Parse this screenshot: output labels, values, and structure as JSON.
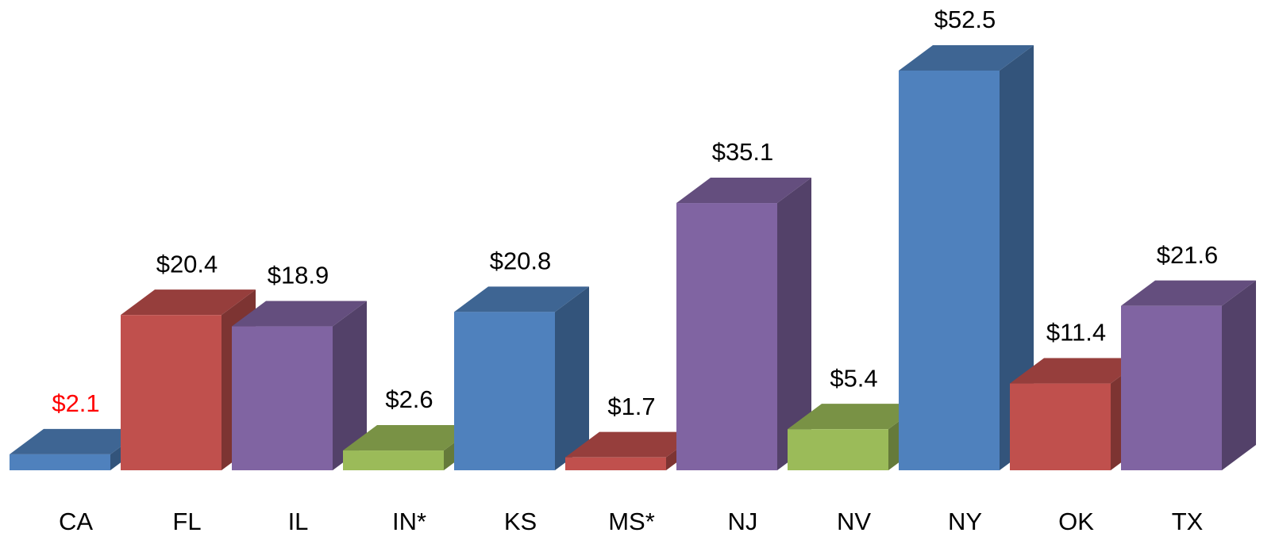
{
  "chart_data": {
    "type": "bar3d",
    "categories": [
      "CA",
      "FL",
      "IL",
      "IN*",
      "KS",
      "MS*",
      "NJ",
      "NV",
      "NY",
      "OK",
      "TX"
    ],
    "values": [
      2.1,
      20.4,
      18.9,
      2.6,
      20.8,
      1.7,
      35.1,
      5.4,
      52.5,
      11.4,
      21.6
    ],
    "value_labels": [
      "$2.1",
      "$20.4",
      "$18.9",
      "$2.6",
      "$20.8",
      "$1.7",
      "$35.1",
      "$5.4",
      "$52.5",
      "$11.4",
      "$21.6"
    ],
    "colors": [
      "#4f81bd",
      "#c0504d",
      "#8064a2",
      "#9bbb59",
      "#4f81bd",
      "#c0504d",
      "#8064a2",
      "#9bbb59",
      "#4f81bd",
      "#c0504d",
      "#8064a2"
    ],
    "value_label_colors": [
      "#ff0000",
      "#000000",
      "#000000",
      "#000000",
      "#000000",
      "#000000",
      "#000000",
      "#000000",
      "#000000",
      "#000000",
      "#000000"
    ]
  }
}
